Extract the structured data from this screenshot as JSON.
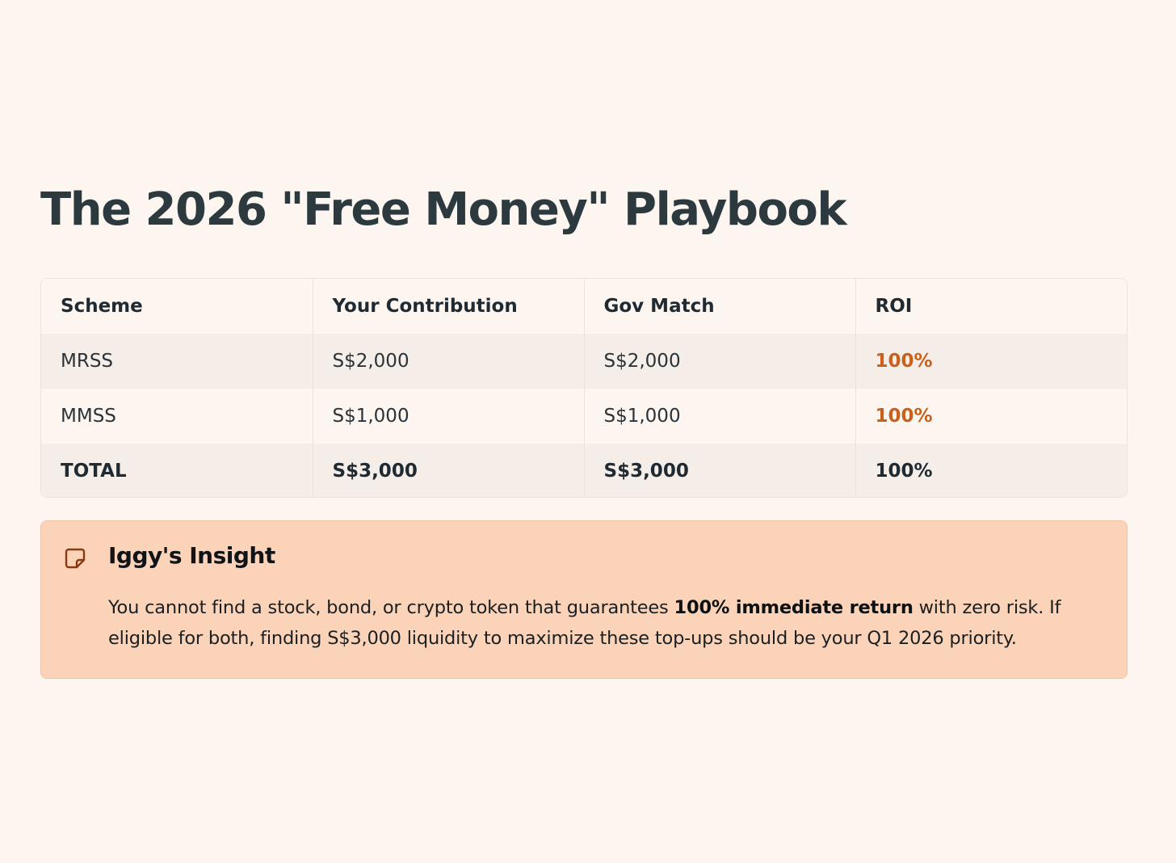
{
  "title": "The 2026 \"Free Money\" Playbook",
  "table": {
    "headers": [
      "Scheme",
      "Your Contribution",
      "Gov Match",
      "ROI"
    ],
    "rows": [
      {
        "scheme": "MRSS",
        "contribution": "S$2,000",
        "match": "S$2,000",
        "roi": "100%"
      },
      {
        "scheme": "MMSS",
        "contribution": "S$1,000",
        "match": "S$1,000",
        "roi": "100%"
      }
    ],
    "total": {
      "scheme": "TOTAL",
      "contribution": "S$3,000",
      "match": "S$3,000",
      "roi": "100%"
    }
  },
  "insight": {
    "icon": "sticky-note-icon",
    "title": "Iggy's Insight",
    "text_before": "You cannot find a stock, bond, or crypto token that guarantees ",
    "text_bold": "100% immediate return",
    "text_after": " with zero risk. If eligible for both, finding S$3,000 liquidity to maximize these top-ups should be your Q1 2026 priority."
  },
  "colors": {
    "background": "#fdf6f0",
    "accent": "#c9611d",
    "insight_background": "#fad3b9",
    "title": "#2c3a40"
  }
}
